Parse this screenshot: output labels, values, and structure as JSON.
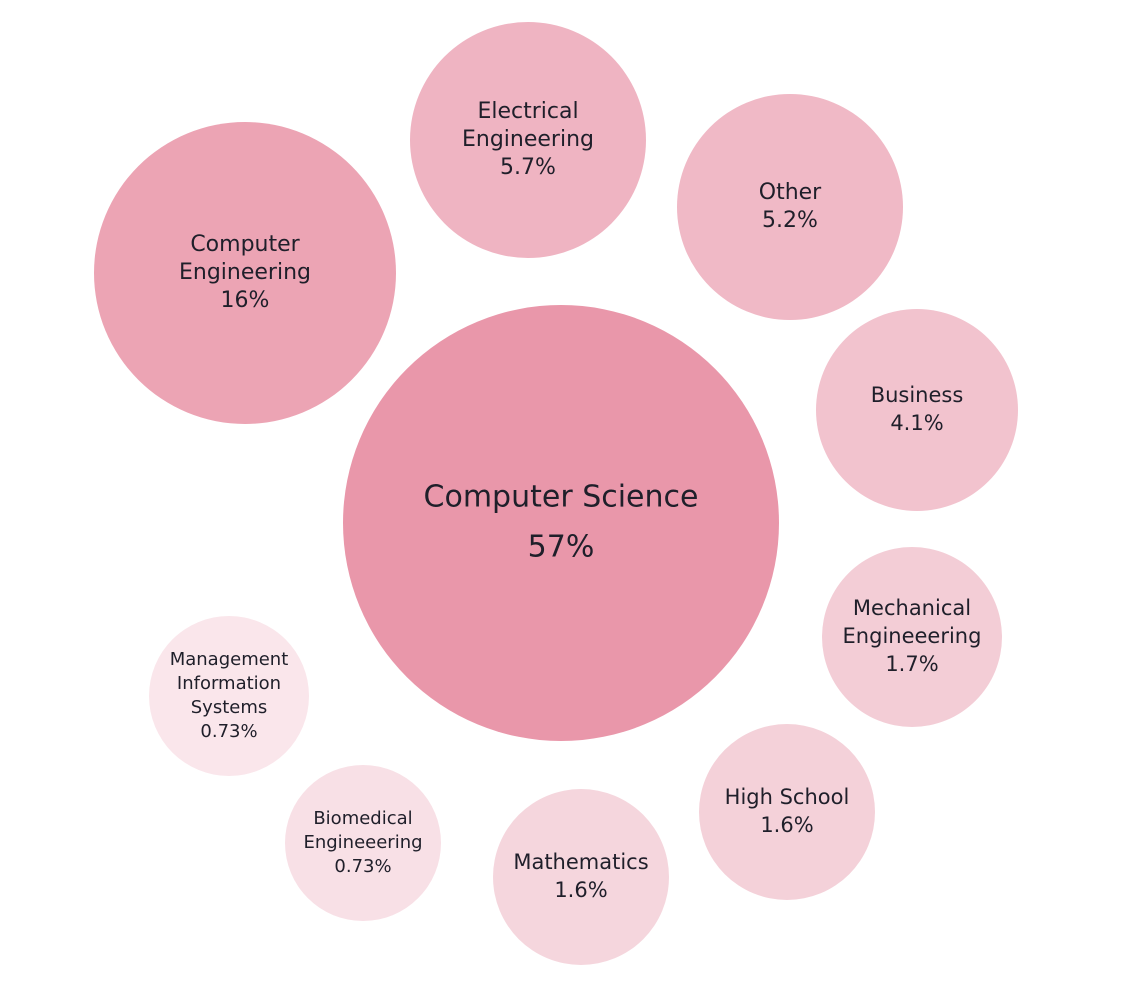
{
  "chart_data": {
    "type": "bubble",
    "title": "",
    "bubbles": [
      {
        "label": [
          "Computer Science"
        ],
        "value_text": "57%",
        "value": 57,
        "color": "#e997aa"
      },
      {
        "label": [
          "Computer",
          "Engineering"
        ],
        "value_text": "16%",
        "value": 16,
        "color": "#eca4b4"
      },
      {
        "label": [
          "Electrical",
          "Engineering"
        ],
        "value_text": "5.7%",
        "value": 5.7,
        "color": "#efb4c2"
      },
      {
        "label": [
          "Other"
        ],
        "value_text": "5.2%",
        "value": 5.2,
        "color": "#f0b9c6"
      },
      {
        "label": [
          "Business"
        ],
        "value_text": "4.1%",
        "value": 4.1,
        "color": "#f2c3ce"
      },
      {
        "label": [
          "Mechanical",
          "Engineeering"
        ],
        "value_text": "1.7%",
        "value": 1.7,
        "color": "#f3cdd6"
      },
      {
        "label": [
          "High School"
        ],
        "value_text": "1.6%",
        "value": 1.6,
        "color": "#f4d1d9"
      },
      {
        "label": [
          "Mathematics"
        ],
        "value_text": "1.6%",
        "value": 1.6,
        "color": "#f5d6dd"
      },
      {
        "label": [
          "Biomedical",
          "Engineeering"
        ],
        "value_text": "0.73%",
        "value": 0.73,
        "color": "#f8e0e6"
      },
      {
        "label": [
          "Management",
          "Information",
          "Systems"
        ],
        "value_text": "0.73%",
        "value": 0.73,
        "color": "#fae6eb"
      }
    ]
  }
}
